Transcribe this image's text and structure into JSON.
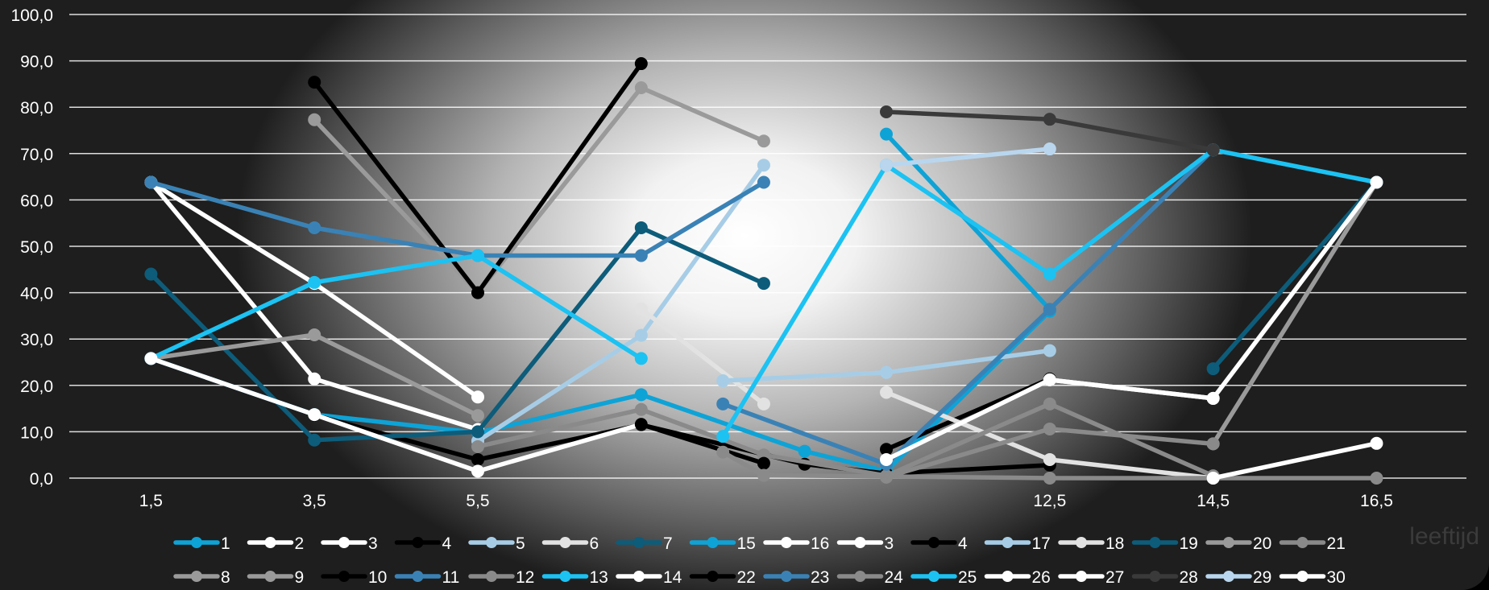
{
  "chart_data": {
    "type": "line",
    "title": "",
    "xlabel": "leeftijd",
    "ylabel": "",
    "ylim": [
      0,
      100
    ],
    "y_tick_labels": [
      "0,0",
      "10,0",
      "20,0",
      "30,0",
      "40,0",
      "50,0",
      "60,0",
      "70,0",
      "80,0",
      "90,0",
      "100,0"
    ],
    "x_tick_labels": [
      "1,5",
      "3,5",
      "5,5",
      "12,5",
      "14,5",
      "16,5"
    ],
    "x_tick_positions": [
      1.5,
      3.5,
      5.5,
      12.5,
      14.5,
      16.5
    ],
    "grid": true,
    "legend_position": "bottom",
    "series": [
      {
        "name": "1",
        "color": "#0ea3d6",
        "points": [
          [
            1.5,
            25.8
          ],
          [
            3.5,
            13.7
          ],
          [
            5.5,
            9.8
          ],
          [
            7.5,
            18.0
          ],
          [
            9.5,
            5.8
          ],
          [
            10.5,
            1.5
          ],
          [
            12.5,
            36.0
          ]
        ]
      },
      {
        "name": "2",
        "color": "#ffffff",
        "points": [
          [
            1.5,
            63.8
          ],
          [
            3.5,
            21.4
          ],
          [
            5.5,
            10.5
          ]
        ]
      },
      {
        "name": "3",
        "color": "#ffffff",
        "points": [
          [
            1.5,
            63.8
          ],
          [
            3.5,
            42.0
          ],
          [
            5.5,
            17.5
          ]
        ]
      },
      {
        "name": "4",
        "color": "#000000",
        "points": [
          [
            3.5,
            13.6
          ],
          [
            5.5,
            4.0
          ],
          [
            7.5,
            11.5
          ],
          [
            9.5,
            3.0
          ],
          [
            10.5,
            1.0
          ],
          [
            12.5,
            2.8
          ]
        ]
      },
      {
        "name": "5",
        "color": "#a7cde6",
        "points": [
          [
            5.5,
            8.0
          ],
          [
            7.5,
            30.8
          ],
          [
            9.0,
            67.5
          ]
        ]
      },
      {
        "name": "6",
        "color": "#e2e2e2",
        "points": [
          [
            7.5,
            36.5
          ],
          [
            9.0,
            16.0
          ]
        ]
      },
      {
        "name": "7",
        "color": "#0d5c7a",
        "points": [
          [
            1.5,
            44.0
          ],
          [
            3.5,
            8.2
          ],
          [
            5.5,
            10.0
          ],
          [
            7.5,
            54.0
          ],
          [
            9.0,
            42.0
          ]
        ]
      },
      {
        "name": "15",
        "color": "#0ea3d6",
        "points": [
          [
            10.5,
            74.2
          ],
          [
            12.5,
            36.4
          ]
        ]
      },
      {
        "name": "16",
        "color": "#ffffff",
        "points": []
      },
      {
        "name": "3",
        "color": "#ffffff",
        "points": []
      },
      {
        "name": "4",
        "color": "#000000",
        "points": [
          [
            10.5,
            6.2
          ],
          [
            12.5,
            21.4
          ]
        ]
      },
      {
        "name": "17",
        "color": "#a7cde6",
        "points": [
          [
            8.5,
            21.0
          ],
          [
            10.5,
            22.8
          ],
          [
            12.5,
            27.5
          ]
        ]
      },
      {
        "name": "18",
        "color": "#e2e2e2",
        "points": [
          [
            10.5,
            18.5
          ],
          [
            12.5,
            4.0
          ],
          [
            14.5,
            0.0
          ]
        ]
      },
      {
        "name": "19",
        "color": "#0d5c7a",
        "points": [
          [
            14.5,
            23.6
          ],
          [
            16.5,
            63.8
          ]
        ]
      },
      {
        "name": "20",
        "color": "#9a9a9a",
        "points": [
          [
            14.5,
            7.4
          ],
          [
            16.5,
            63.8
          ]
        ]
      },
      {
        "name": "21",
        "color": "#8a8a8a",
        "points": [
          [
            10.5,
            0.2
          ],
          [
            12.5,
            10.6
          ],
          [
            14.5,
            7.4
          ]
        ]
      },
      {
        "name": "8",
        "color": "#9a9a9a",
        "points": [
          [
            1.5,
            25.8
          ],
          [
            3.5,
            30.9
          ],
          [
            5.5,
            13.5
          ]
        ]
      },
      {
        "name": "9",
        "color": "#9a9a9a",
        "points": [
          [
            3.5,
            77.3
          ],
          [
            5.5,
            40.0
          ],
          [
            7.5,
            84.2
          ],
          [
            9.0,
            72.7
          ]
        ]
      },
      {
        "name": "10",
        "color": "#000000",
        "points": [
          [
            3.5,
            85.4
          ],
          [
            5.5,
            40.0
          ],
          [
            7.5,
            89.4
          ]
        ]
      },
      {
        "name": "11",
        "color": "#3a82b5",
        "points": [
          [
            1.5,
            63.8
          ],
          [
            3.5,
            54.0
          ],
          [
            5.5,
            48.0
          ],
          [
            7.5,
            48.0
          ],
          [
            9.0,
            63.8
          ]
        ]
      },
      {
        "name": "12",
        "color": "#8a8a8a",
        "points": [
          [
            5.5,
            6.8
          ],
          [
            7.5,
            14.8
          ],
          [
            9.0,
            5.0
          ],
          [
            10.5,
            0.5
          ],
          [
            12.5,
            16.0
          ],
          [
            14.5,
            0.5
          ]
        ]
      },
      {
        "name": "13",
        "color": "#1cc2f2",
        "points": [
          [
            1.5,
            25.8
          ],
          [
            3.5,
            42.2
          ],
          [
            5.5,
            48.0
          ],
          [
            7.5,
            25.8
          ]
        ]
      },
      {
        "name": "14",
        "color": "#ffffff",
        "points": [
          [
            1.5,
            25.8
          ],
          [
            3.5,
            13.7
          ],
          [
            5.5,
            1.5
          ],
          [
            7.5,
            11.6
          ]
        ]
      },
      {
        "name": "22",
        "color": "#000000",
        "points": [
          [
            7.5,
            11.6
          ],
          [
            9.0,
            3.2
          ]
        ]
      },
      {
        "name": "23",
        "color": "#3a82b5",
        "points": [
          [
            8.5,
            16.0
          ],
          [
            10.5,
            3.0
          ],
          [
            12.5,
            36.4
          ],
          [
            14.5,
            70.8
          ]
        ]
      },
      {
        "name": "24",
        "color": "#8a8a8a",
        "points": [
          [
            8.5,
            5.6
          ],
          [
            9.0,
            0.6
          ],
          [
            12.5,
            0.0
          ],
          [
            16.5,
            0.0
          ]
        ]
      },
      {
        "name": "25",
        "color": "#1cc2f2",
        "points": [
          [
            8.5,
            9.0
          ],
          [
            10.5,
            67.5
          ],
          [
            12.5,
            44.0
          ],
          [
            14.5,
            70.8
          ],
          [
            16.5,
            63.8
          ]
        ]
      },
      {
        "name": "26",
        "color": "#ffffff",
        "points": [
          [
            12.5,
            21.2
          ],
          [
            14.5,
            17.2
          ],
          [
            16.5,
            63.8
          ]
        ]
      },
      {
        "name": "27",
        "color": "#ffffff",
        "points": [
          [
            14.5,
            0.0
          ],
          [
            16.5,
            7.5
          ]
        ]
      },
      {
        "name": "28",
        "color": "#3a3a3a",
        "points": [
          [
            10.5,
            79.0
          ],
          [
            12.5,
            77.4
          ],
          [
            14.5,
            70.8
          ]
        ]
      },
      {
        "name": "29",
        "color": "#b9d6ee",
        "points": [
          [
            10.5,
            67.5
          ],
          [
            12.5,
            71.0
          ]
        ]
      },
      {
        "name": "30",
        "color": "#ffffff",
        "points": [
          [
            10.5,
            4.0
          ],
          [
            12.5,
            21.2
          ],
          [
            14.5,
            17.2
          ]
        ]
      }
    ],
    "legend_rows": [
      [
        "1",
        "2",
        "3",
        "4",
        "5",
        "6",
        "7",
        "15",
        "16",
        "3",
        "4",
        "17",
        "18",
        "19",
        "20",
        "21"
      ],
      [
        "8",
        "9",
        "10",
        "11",
        "12",
        "13",
        "14",
        "22",
        "23",
        "24",
        "25",
        "26",
        "27",
        "28",
        "29",
        "30"
      ]
    ]
  }
}
